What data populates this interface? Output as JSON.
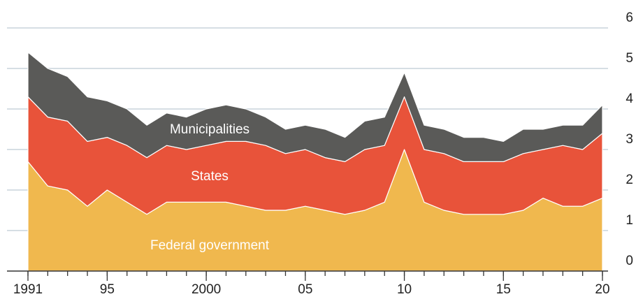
{
  "chart_data": {
    "type": "stacked_area",
    "x": [
      1991,
      1992,
      1993,
      1994,
      1995,
      1996,
      1997,
      1998,
      1999,
      2000,
      2001,
      2002,
      2003,
      2004,
      2005,
      2006,
      2007,
      2008,
      2009,
      2010,
      2011,
      2012,
      2013,
      2014,
      2015,
      2016,
      2017,
      2018,
      2019,
      2020
    ],
    "series": [
      {
        "name": "Federal government",
        "color": "#f0b84e",
        "values": [
          2.7,
          2.1,
          2.0,
          1.6,
          2.0,
          1.7,
          1.4,
          1.7,
          1.7,
          1.7,
          1.7,
          1.6,
          1.5,
          1.5,
          1.6,
          1.5,
          1.4,
          1.5,
          1.7,
          3.0,
          1.7,
          1.5,
          1.4,
          1.4,
          1.4,
          1.5,
          1.8,
          1.6,
          1.6,
          1.8
        ]
      },
      {
        "name": "States",
        "color": "#e8533a",
        "values": [
          1.6,
          1.7,
          1.7,
          1.6,
          1.3,
          1.4,
          1.4,
          1.4,
          1.3,
          1.4,
          1.5,
          1.6,
          1.6,
          1.4,
          1.4,
          1.3,
          1.3,
          1.5,
          1.4,
          1.3,
          1.3,
          1.4,
          1.3,
          1.3,
          1.3,
          1.4,
          1.2,
          1.5,
          1.4,
          1.6
        ]
      },
      {
        "name": "Municipalities",
        "color": "#5a5a58",
        "values": [
          1.1,
          1.2,
          1.1,
          1.1,
          0.9,
          0.9,
          0.8,
          0.8,
          0.8,
          0.9,
          0.9,
          0.8,
          0.7,
          0.6,
          0.6,
          0.7,
          0.6,
          0.7,
          0.7,
          0.6,
          0.6,
          0.6,
          0.6,
          0.6,
          0.5,
          0.6,
          0.5,
          0.5,
          0.6,
          0.7
        ]
      }
    ],
    "xlim": [
      1991,
      2020
    ],
    "xticks": [
      1991,
      {
        "value": 1995,
        "label": "95"
      },
      2000,
      {
        "value": 2005,
        "label": "05"
      },
      {
        "value": 2010,
        "label": "10"
      },
      {
        "value": 2015,
        "label": "15"
      },
      {
        "value": 2020,
        "label": "20"
      }
    ],
    "ylim": [
      0,
      6
    ],
    "yticks": [
      0,
      1,
      2,
      3,
      4,
      5,
      6
    ],
    "grid": true
  }
}
